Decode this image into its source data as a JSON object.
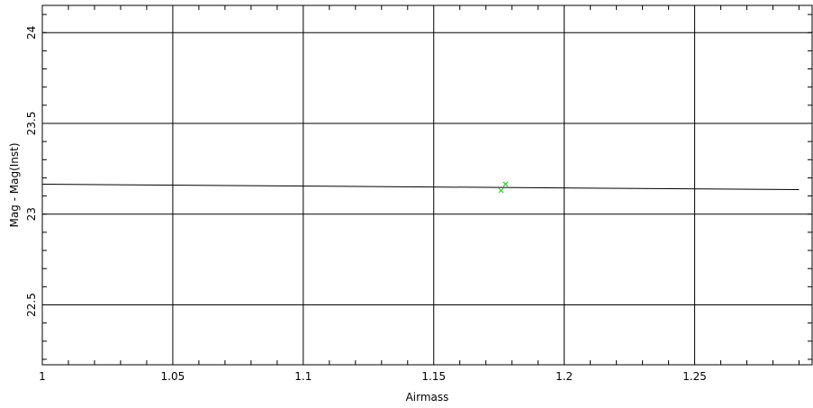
{
  "chart_data": {
    "type": "scatter",
    "title": "",
    "xlabel": "Airmass",
    "ylabel": "Mag - Mag(Inst)",
    "xlim": [
      1.0,
      1.295
    ],
    "ylim": [
      22.17,
      24.15
    ],
    "x_ticks": [
      1,
      1.05,
      1.1,
      1.15,
      1.2,
      1.25
    ],
    "x_tick_labels": [
      "1",
      "1.05",
      "1.1",
      "1.15",
      "1.2",
      "1.25"
    ],
    "y_ticks": [
      22.5,
      23,
      23.5,
      24
    ],
    "y_tick_labels": [
      "22.5",
      "23",
      "23.5",
      "24"
    ],
    "grid": true,
    "series": [
      {
        "kind": "points",
        "marker": "x",
        "color": "#00cc00",
        "x": [
          1.1758,
          1.1775
        ],
        "y": [
          23.13,
          23.165
        ]
      },
      {
        "kind": "line",
        "color": "#000000",
        "x": [
          1.0,
          1.29
        ],
        "y": [
          23.165,
          23.135
        ]
      }
    ]
  }
}
